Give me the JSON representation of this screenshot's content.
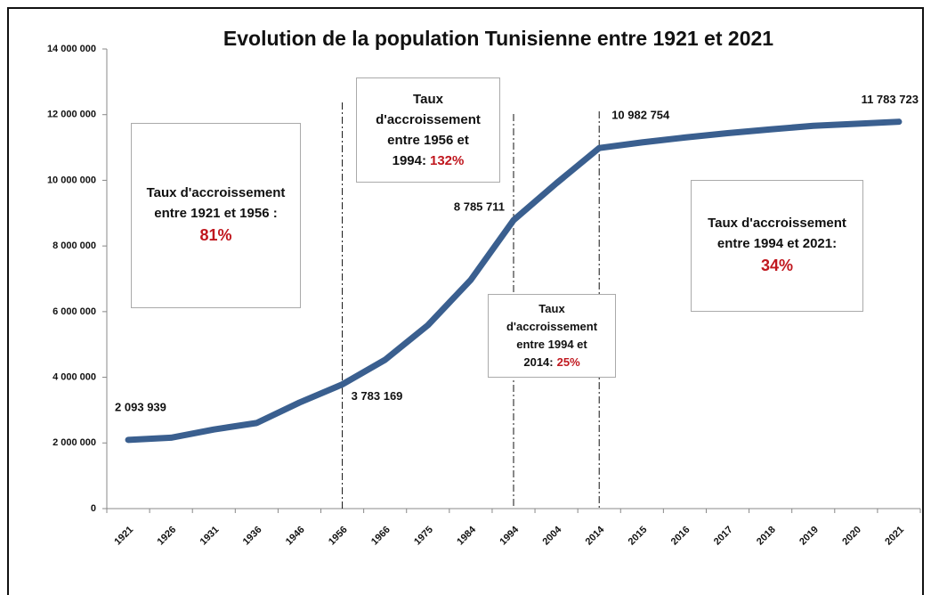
{
  "chart_data": {
    "type": "line",
    "title": "Evolution de la population Tunisienne entre 1921 et 2021",
    "categories": [
      "1921",
      "1926",
      "1931",
      "1936",
      "1946",
      "1956",
      "1966",
      "1975",
      "1984",
      "1994",
      "2004",
      "2014",
      "2015",
      "2016",
      "2017",
      "2018",
      "2019",
      "2020",
      "2021"
    ],
    "series": [
      {
        "name": "Population",
        "color": "#3a5f8f",
        "values": [
          2093939,
          2160000,
          2410000,
          2608000,
          3231000,
          3783169,
          4533000,
          5588000,
          6966000,
          8785711,
          9910000,
          10982754,
          11154000,
          11304000,
          11435000,
          11551000,
          11660000,
          11722000,
          11783723
        ],
        "value_labels": [
          "2 093 939",
          null,
          null,
          null,
          null,
          "3 783 169",
          null,
          null,
          null,
          "8 785 711",
          null,
          "10 982 754",
          null,
          null,
          null,
          null,
          null,
          null,
          "11 783 723"
        ]
      }
    ],
    "ylim": [
      0,
      14000000
    ],
    "yticks": [
      0,
      {
        "value": 2000000,
        "label": "2 000 000"
      },
      {
        "value": 4000000,
        "label": "4 000 000"
      },
      {
        "value": 6000000,
        "label": "6 000 000"
      },
      {
        "value": 8000000,
        "label": "8 000 000"
      },
      {
        "value": 10000000,
        "label": "10 000 000"
      },
      {
        "value": 12000000,
        "label": "12 000 000"
      },
      {
        "value": 14000000,
        "label": "14 000 000"
      }
    ],
    "annotations": [
      {
        "text": "Taux d'accroissement entre 1921 et 1956 :",
        "rate": "81%"
      },
      {
        "text": "Taux d'accroissement entre 1956 et 1994:",
        "rate": "132%"
      },
      {
        "text": "Taux d'accroissement entre 1994 et 2014:",
        "rate": "25%"
      },
      {
        "text": "Taux d'accroissement entre 1994 et 2021:",
        "rate": "34%"
      }
    ]
  }
}
